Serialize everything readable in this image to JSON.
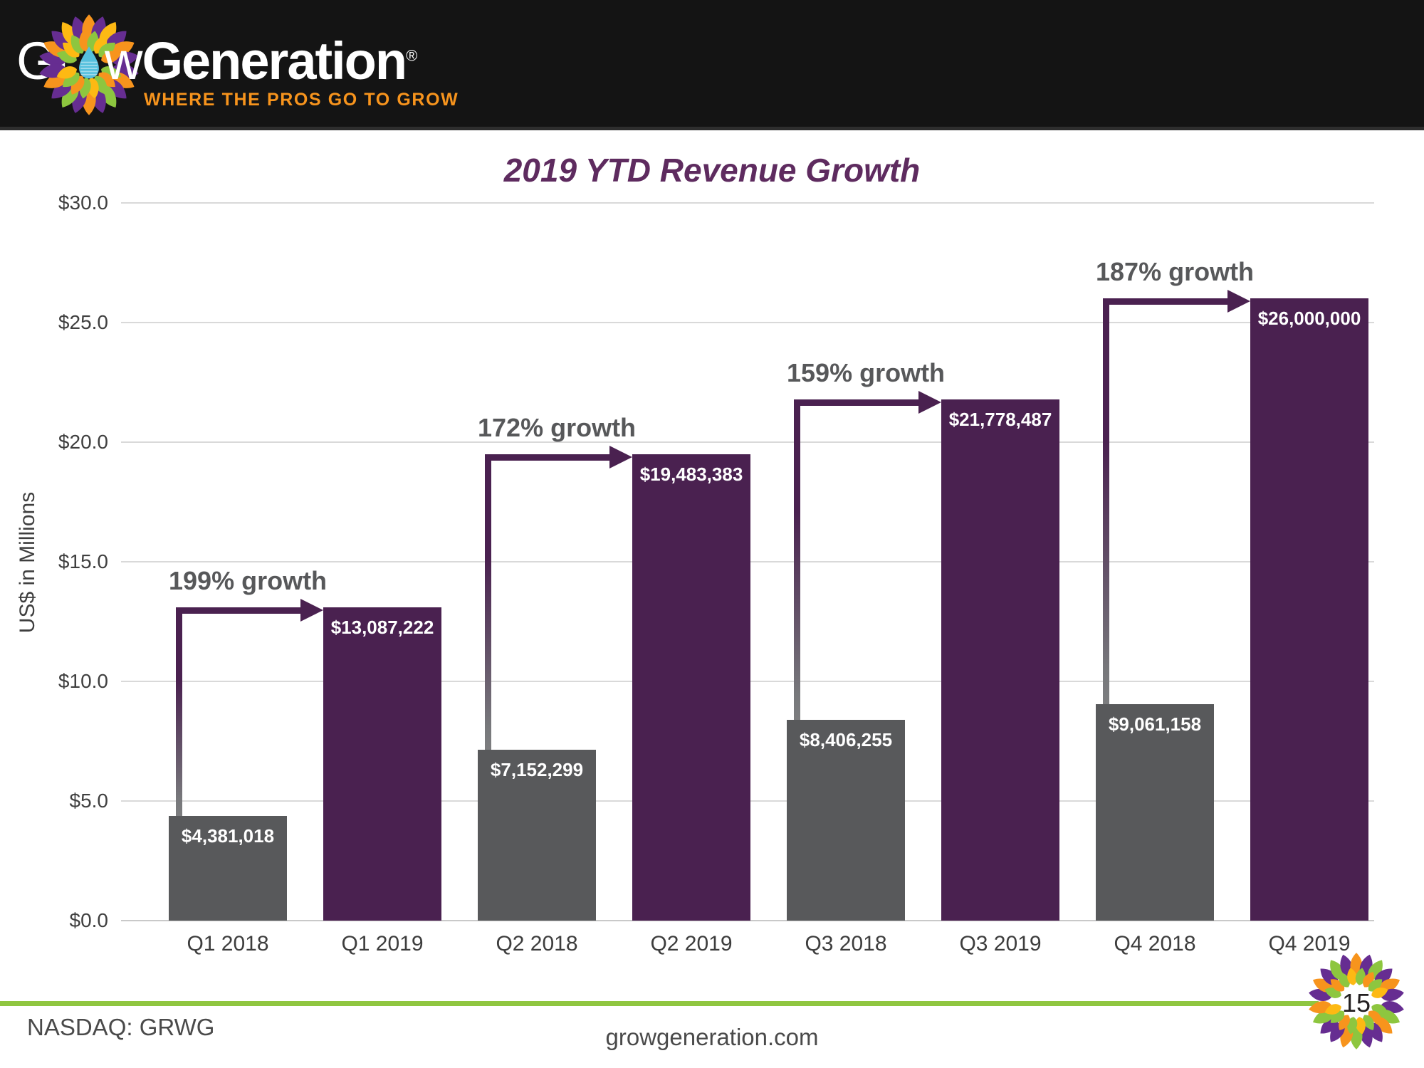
{
  "header": {
    "logo": {
      "part1": "Gr",
      "part2": "w",
      "part3": "Generation",
      "registered": "®",
      "tagline": "WHERE THE PROS GO TO GROW"
    }
  },
  "chart_data": {
    "type": "bar",
    "title": "2019 YTD Revenue Growth",
    "ylabel": "US$ in Millions",
    "xlabel": "",
    "ylim": [
      0,
      30
    ],
    "ytick_step": 5,
    "ytick_labels": [
      "$0.0",
      "$5.0",
      "$10.0",
      "$15.0",
      "$20.0",
      "$25.0",
      "$30.0"
    ],
    "grid": true,
    "legend": "none",
    "categories": [
      "Q1 2018",
      "Q1 2019",
      "Q2 2018",
      "Q2 2019",
      "Q3 2018",
      "Q3 2019",
      "Q4 2018",
      "Q4 2019"
    ],
    "values_usd": [
      4381018,
      13087222,
      7152299,
      19483383,
      8406255,
      21778487,
      9061158,
      26000000
    ],
    "bar_labels": [
      "$4,381,018",
      "$13,087,222",
      "$7,152,299",
      "$19,483,383",
      "$8,406,255",
      "$21,778,487",
      "$9,061,158",
      "$26,000,000"
    ],
    "series": [
      {
        "name": "2018",
        "color": "#58595b"
      },
      {
        "name": "2019",
        "color": "#4a2150"
      }
    ],
    "annotations": [
      {
        "label": "199% growth",
        "from": "Q1 2018",
        "to": "Q1 2019"
      },
      {
        "label": "172% growth",
        "from": "Q2 2018",
        "to": "Q2 2019"
      },
      {
        "label": "159% growth",
        "from": "Q3 2018",
        "to": "Q3 2019"
      },
      {
        "label": "187% growth",
        "from": "Q4 2018",
        "to": "Q4 2019"
      }
    ]
  },
  "footer": {
    "ticker": "NASDAQ: GRWG",
    "website": "growgeneration.com",
    "page_number": "15"
  },
  "colors": {
    "header_bg": "#141414",
    "title_purple": "#5e2b5f",
    "bar_2018": "#58595b",
    "bar_2019": "#4a2150",
    "arrow_purple": "#4a2150",
    "annotation_text": "#57585a",
    "gridline": "#d9d9d9",
    "accent_green": "#8fc640",
    "tagline_orange": "#f7941d",
    "leaf_purple": "#662d91",
    "leaf_orange": "#f7941d",
    "leaf_green": "#8dc63f",
    "leaf_yellow": "#fdb913",
    "drop_blue": "#56c0dd"
  }
}
